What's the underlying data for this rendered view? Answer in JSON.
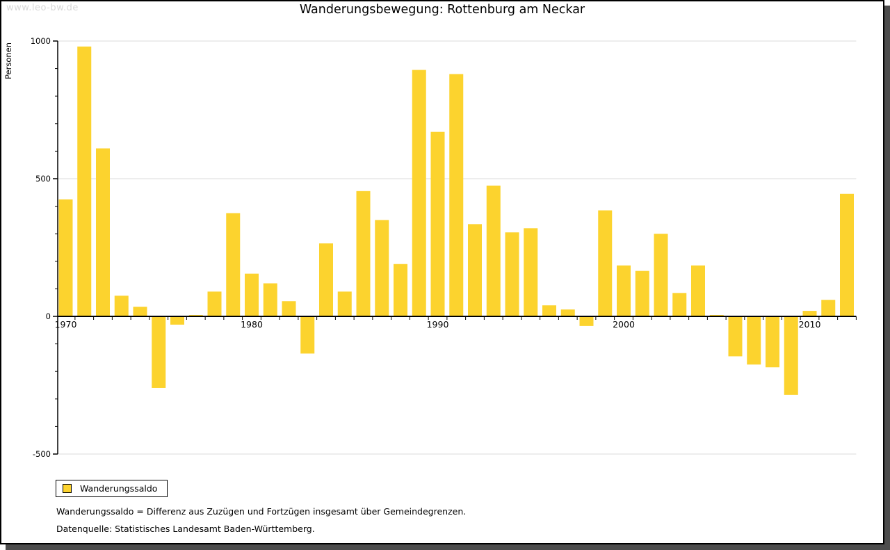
{
  "watermark": "www.leo-bw.de",
  "title": "Wanderungsbewegung: Rottenburg am Neckar",
  "legend": {
    "label": "Wanderungssaldo"
  },
  "footnotes": {
    "definition": "Wanderungssaldo = Differenz aus Zuzügen und Fortzügen insgesamt über Gemeindegrenzen.",
    "source": "Datenquelle: Statistisches Landesamt Baden-Württemberg."
  },
  "colors": {
    "bar": "#FCD32E",
    "axis": "#000000",
    "grid": "#DBDBDB",
    "watermark": "#D8D8D8",
    "frame_shadow": "#4D4D4D"
  },
  "chart_data": {
    "type": "bar",
    "title": "Wanderungsbewegung: Rottenburg am Neckar",
    "xlabel": "",
    "ylabel": "Personen",
    "series_name": "Wanderungssaldo",
    "years": [
      1970,
      1971,
      1972,
      1973,
      1974,
      1975,
      1976,
      1977,
      1978,
      1979,
      1980,
      1981,
      1982,
      1983,
      1984,
      1985,
      1986,
      1987,
      1988,
      1989,
      1990,
      1991,
      1992,
      1993,
      1994,
      1995,
      1996,
      1997,
      1998,
      1999,
      2000,
      2001,
      2002,
      2003,
      2004,
      2005,
      2006,
      2007,
      2008,
      2009,
      2010,
      2011,
      2012
    ],
    "values": [
      425,
      980,
      610,
      75,
      35,
      -260,
      -30,
      5,
      90,
      375,
      155,
      120,
      55,
      -135,
      265,
      90,
      455,
      350,
      190,
      895,
      670,
      880,
      335,
      475,
      305,
      320,
      40,
      25,
      -35,
      385,
      185,
      165,
      300,
      85,
      185,
      5,
      -145,
      -175,
      -185,
      -285,
      20,
      60,
      445
    ],
    "ylim": [
      -500,
      1000
    ],
    "y_major_ticks": [
      1000,
      500,
      0,
      -500
    ],
    "y_minor_tick_step": 100,
    "x_labeled_years": [
      1970,
      1980,
      1990,
      2000,
      2010
    ],
    "grid": true,
    "legend_position": "bottom-left"
  }
}
